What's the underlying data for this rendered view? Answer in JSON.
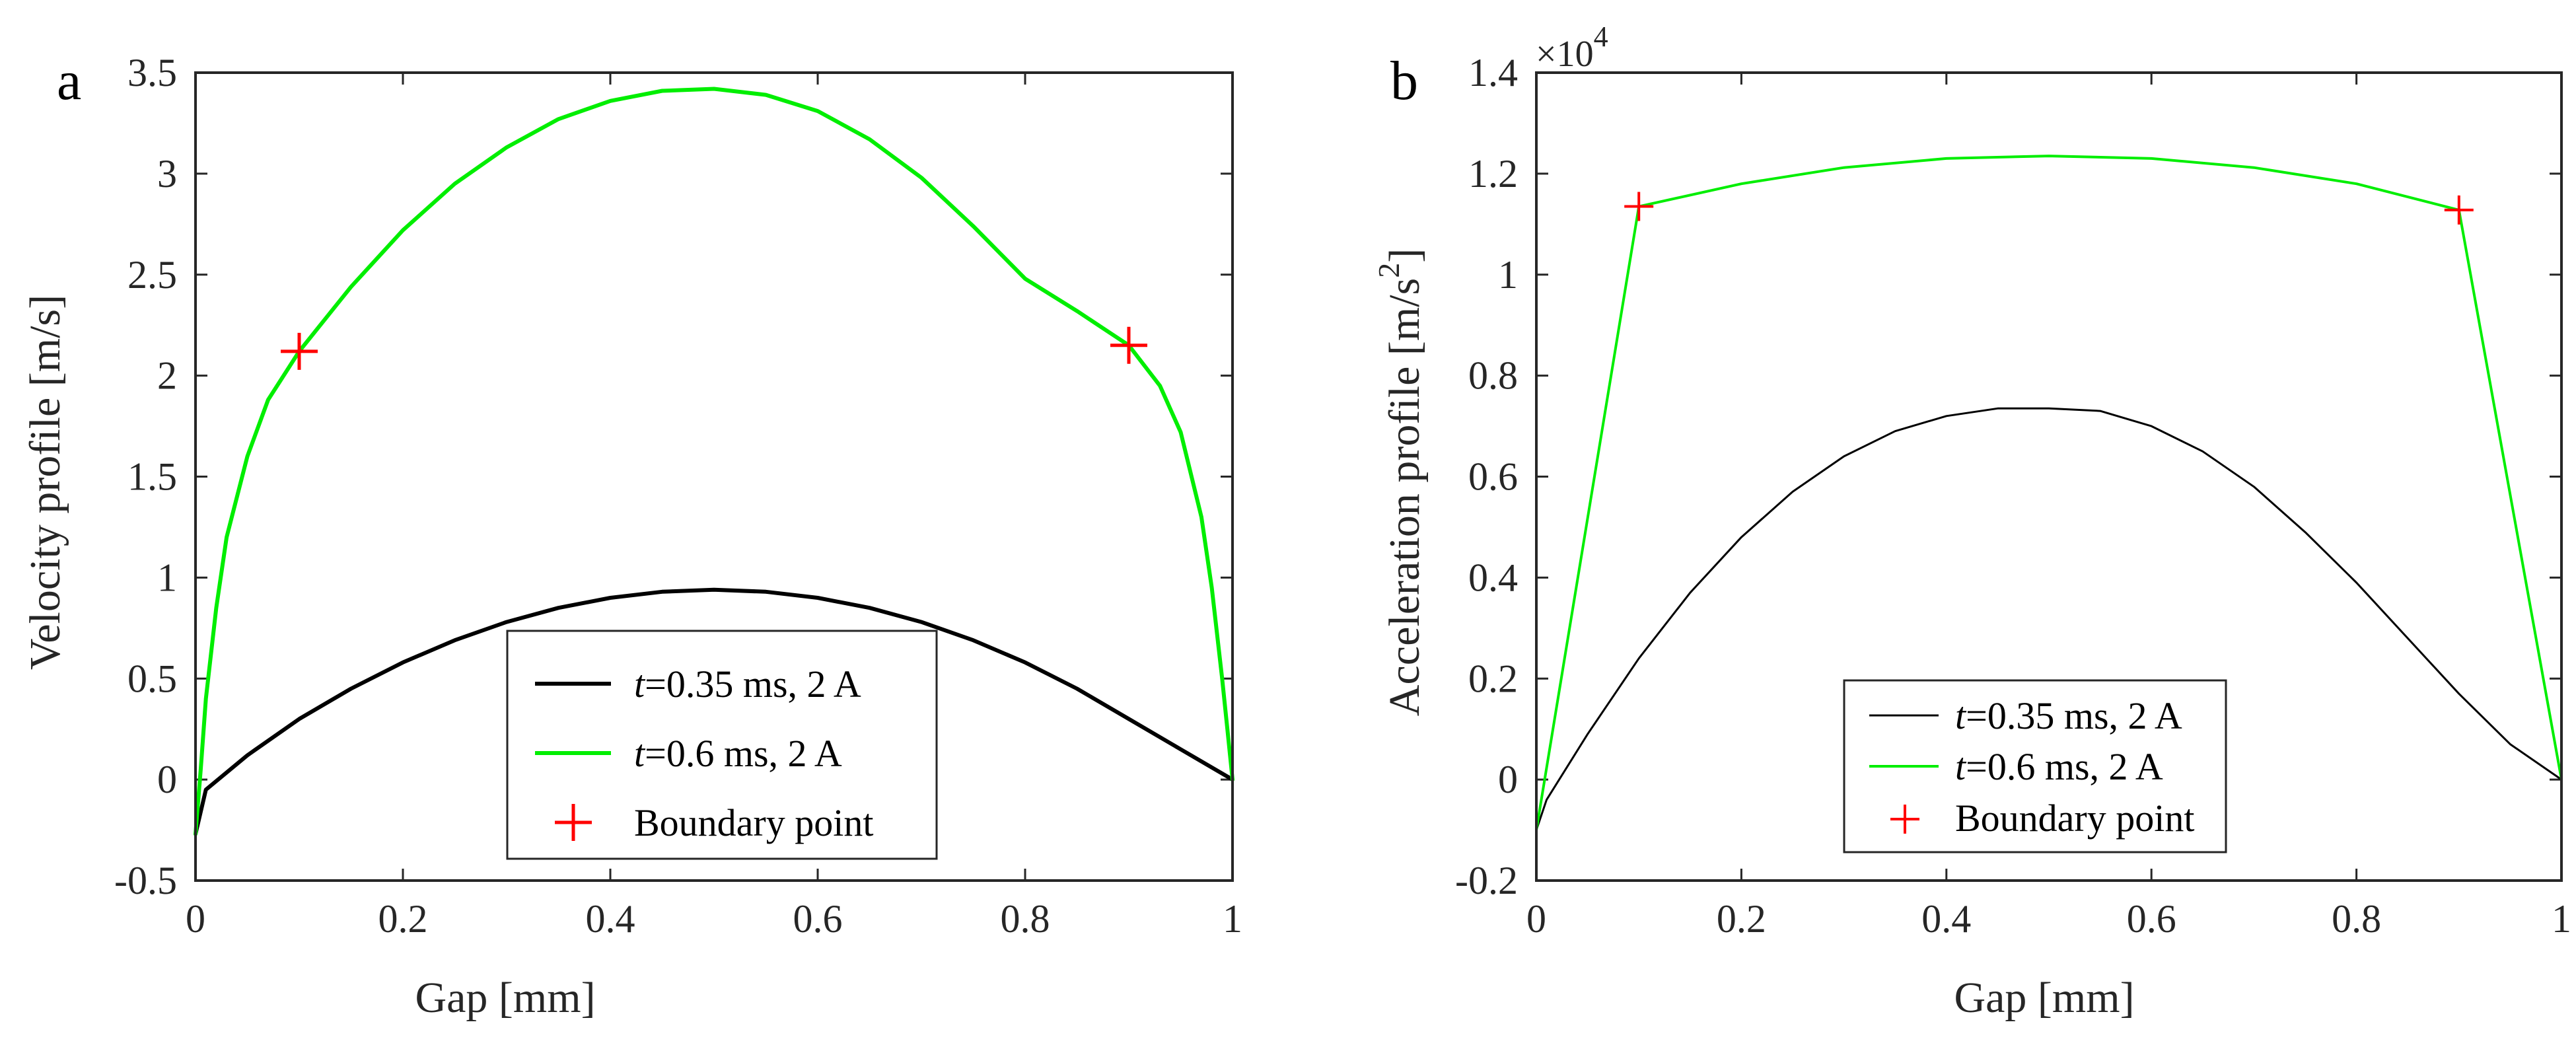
{
  "chart_data": [
    {
      "type": "line",
      "panel_label": "a",
      "title": "",
      "xlabel": "Gap [mm]",
      "ylabel": "Velocity profile [m/s]",
      "xlim": [
        0,
        1
      ],
      "ylim": [
        -0.5,
        3.5
      ],
      "xticks": [
        0,
        0.2,
        0.4,
        0.6,
        0.8,
        1
      ],
      "xtick_labels": [
        "0",
        "0.2",
        "0.4",
        "0.6",
        "0.8",
        "1"
      ],
      "yticks": [
        -0.5,
        0,
        0.5,
        1,
        1.5,
        2,
        2.5,
        3,
        3.5
      ],
      "ytick_labels": [
        "-0.5",
        "0",
        "0.5",
        "1",
        "1.5",
        "2",
        "2.5",
        "3",
        "3.5"
      ],
      "legend_position": "bottom-center",
      "series": [
        {
          "name": "t=0.35 ms, 2 A",
          "legend_italic": "t",
          "legend_rest": "=0.35 ms, 2 A",
          "color": "#000000",
          "x": [
            0,
            0.01,
            0.05,
            0.1,
            0.15,
            0.2,
            0.25,
            0.3,
            0.35,
            0.4,
            0.45,
            0.5,
            0.55,
            0.6,
            0.65,
            0.7,
            0.75,
            0.8,
            0.85,
            0.9,
            0.95,
            1.0
          ],
          "y": [
            -0.27,
            -0.05,
            0.12,
            0.3,
            0.45,
            0.58,
            0.69,
            0.78,
            0.85,
            0.9,
            0.93,
            0.94,
            0.93,
            0.9,
            0.85,
            0.78,
            0.69,
            0.58,
            0.45,
            0.3,
            0.15,
            0.0
          ]
        },
        {
          "name": "t=0.6 ms, 2 A",
          "legend_italic": "t",
          "legend_rest": "=0.6 ms, 2 A",
          "color": "#00ee00",
          "x": [
            0,
            0.005,
            0.01,
            0.02,
            0.03,
            0.05,
            0.07,
            0.1,
            0.15,
            0.2,
            0.25,
            0.3,
            0.35,
            0.4,
            0.45,
            0.5,
            0.55,
            0.6,
            0.65,
            0.7,
            0.75,
            0.8,
            0.85,
            0.9,
            0.93,
            0.95,
            0.97,
            0.98,
            0.99,
            0.995,
            1.0
          ],
          "y": [
            -0.27,
            0.05,
            0.4,
            0.85,
            1.2,
            1.6,
            1.88,
            2.12,
            2.44,
            2.72,
            2.95,
            3.13,
            3.27,
            3.36,
            3.41,
            3.42,
            3.39,
            3.31,
            3.17,
            2.98,
            2.74,
            2.48,
            2.32,
            2.15,
            1.95,
            1.72,
            1.3,
            0.95,
            0.5,
            0.25,
            0.0
          ]
        }
      ],
      "markers": {
        "name": "Boundary point",
        "color": "#ff0000",
        "x": [
          0.1,
          0.9
        ],
        "y": [
          2.12,
          2.15
        ]
      }
    },
    {
      "type": "line",
      "panel_label": "b",
      "title": "",
      "xlabel": "Gap [mm]",
      "ylabel_main": "Acceleration profile [m/s",
      "ylabel_sup": "2",
      "ylabel_end": "]",
      "exponent_base": "×10",
      "exponent_power": "4",
      "xlim": [
        0,
        1
      ],
      "ylim": [
        -0.2,
        1.4
      ],
      "xticks": [
        0,
        0.2,
        0.4,
        0.6,
        0.8,
        1
      ],
      "xtick_labels": [
        "0",
        "0.2",
        "0.4",
        "0.6",
        "0.8",
        "1"
      ],
      "yticks": [
        -0.2,
        0,
        0.2,
        0.4,
        0.6,
        0.8,
        1,
        1.2,
        1.4
      ],
      "ytick_labels": [
        "-0.2",
        "0",
        "0.2",
        "0.4",
        "0.6",
        "0.8",
        "1",
        "1.2",
        "1.4"
      ],
      "legend_position": "bottom-center",
      "series": [
        {
          "name": "t=0.35 ms, 2 A",
          "legend_italic": "t",
          "legend_rest": "=0.35 ms, 2 A",
          "color": "#000000",
          "x": [
            0,
            0.01,
            0.05,
            0.1,
            0.15,
            0.2,
            0.25,
            0.3,
            0.35,
            0.4,
            0.45,
            0.5,
            0.55,
            0.6,
            0.65,
            0.7,
            0.75,
            0.8,
            0.85,
            0.9,
            0.95,
            1.0
          ],
          "y": [
            -0.1,
            -0.04,
            0.09,
            0.24,
            0.37,
            0.48,
            0.57,
            0.64,
            0.69,
            0.72,
            0.735,
            0.735,
            0.73,
            0.7,
            0.65,
            0.58,
            0.49,
            0.39,
            0.28,
            0.17,
            0.07,
            0.0
          ]
        },
        {
          "name": "t=0.6 ms, 2 A",
          "legend_italic": "t",
          "legend_rest": "=0.6 ms, 2 A",
          "color": "#00ee00",
          "x": [
            0,
            0.1,
            0.2,
            0.3,
            0.4,
            0.5,
            0.6,
            0.7,
            0.8,
            0.9,
            1.0
          ],
          "y": [
            -0.1,
            1.135,
            1.18,
            1.212,
            1.23,
            1.235,
            1.23,
            1.212,
            1.18,
            1.128,
            0.0
          ]
        }
      ],
      "markers": {
        "name": "Boundary point",
        "color": "#ff0000",
        "x": [
          0.1,
          0.9
        ],
        "y": [
          1.135,
          1.128
        ]
      }
    }
  ]
}
